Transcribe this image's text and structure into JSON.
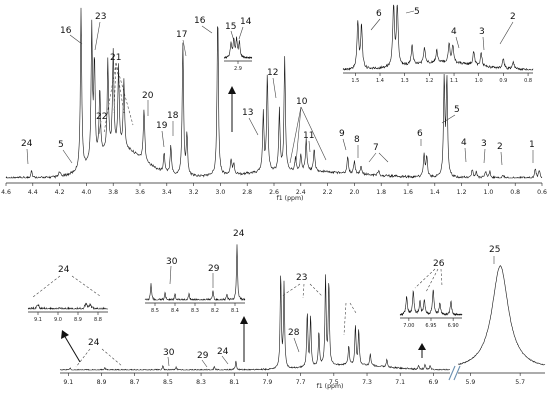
{
  "chart_data": [
    {
      "id": "panel-top",
      "type": "line",
      "xlabel": "f1 (ppm)",
      "xlim": [
        4.6,
        0.6
      ],
      "x_ticks": [
        4.6,
        4.4,
        4.2,
        4.0,
        3.8,
        3.6,
        3.4,
        3.2,
        3.0,
        2.8,
        2.6,
        2.4,
        2.2,
        2.0,
        1.8,
        1.6,
        1.4,
        1.2,
        1.0,
        0.8,
        0.6
      ],
      "x_tick_labels": [
        "4.6",
        "4.4",
        "4.2",
        "4.0",
        "3.8",
        "3.6",
        "3.4",
        "3.2",
        "3.0",
        "2.8",
        "2.6",
        "2.4",
        "2.2",
        "2.0",
        "1.8",
        "1.6",
        "1.4",
        "1.2",
        "1.0",
        "0.8",
        "0.6"
      ],
      "peaks": [
        {
          "ppm": 4.41,
          "h": 0.05,
          "label": "24"
        },
        {
          "ppm": 4.2,
          "h": 0.03,
          "label": "5"
        },
        {
          "ppm": 4.04,
          "h": 1.0,
          "label": "16"
        },
        {
          "ppm": 3.96,
          "h": 0.82,
          "label": "23"
        },
        {
          "ppm": 3.94,
          "h": 0.6,
          "label": "22"
        },
        {
          "ppm": 3.9,
          "h": 0.42,
          "label": ""
        },
        {
          "ppm": 3.84,
          "h": 0.56,
          "label": "21"
        },
        {
          "ppm": 3.8,
          "h": 0.6,
          "label": ""
        },
        {
          "ppm": 3.76,
          "h": 0.5,
          "label": ""
        },
        {
          "ppm": 3.72,
          "h": 0.42,
          "label": ""
        },
        {
          "ppm": 3.57,
          "h": 0.32,
          "label": "20"
        },
        {
          "ppm": 3.42,
          "h": 0.12,
          "label": "19"
        },
        {
          "ppm": 3.37,
          "h": 0.18,
          "label": "18"
        },
        {
          "ppm": 3.28,
          "h": 0.82,
          "label": "17"
        },
        {
          "ppm": 3.25,
          "h": 0.25,
          "label": ""
        },
        {
          "ppm": 3.02,
          "h": 1.0,
          "label": "16"
        },
        {
          "ppm": 2.92,
          "h": 0.09,
          "label": "15"
        },
        {
          "ppm": 2.9,
          "h": 0.07,
          "label": "14"
        },
        {
          "ppm": 2.68,
          "h": 0.36,
          "label": "13"
        },
        {
          "ppm": 2.65,
          "h": 0.6,
          "label": ""
        },
        {
          "ppm": 2.56,
          "h": 0.38,
          "label": "12"
        },
        {
          "ppm": 2.52,
          "h": 0.7,
          "label": ""
        },
        {
          "ppm": 2.44,
          "h": 0.08,
          "label": "10"
        },
        {
          "ppm": 2.4,
          "h": 0.1,
          "label": ""
        },
        {
          "ppm": 2.36,
          "h": 0.2,
          "label": "11"
        },
        {
          "ppm": 2.3,
          "h": 0.15,
          "label": ""
        },
        {
          "ppm": 2.05,
          "h": 0.1,
          "label": "9"
        },
        {
          "ppm": 2.0,
          "h": 0.08,
          "label": ""
        },
        {
          "ppm": 1.95,
          "h": 0.05,
          "label": "8"
        },
        {
          "ppm": 1.82,
          "h": 0.03,
          "label": "7"
        },
        {
          "ppm": 1.48,
          "h": 0.14,
          "label": "6"
        },
        {
          "ppm": 1.46,
          "h": 0.13,
          "label": ""
        },
        {
          "ppm": 1.33,
          "h": 0.6,
          "label": "5"
        },
        {
          "ppm": 1.31,
          "h": 0.6,
          "label": ""
        },
        {
          "ppm": 1.12,
          "h": 0.05,
          "label": "4"
        },
        {
          "ppm": 1.09,
          "h": 0.04,
          "label": ""
        },
        {
          "ppm": 1.02,
          "h": 0.04,
          "label": "3"
        },
        {
          "ppm": 0.99,
          "h": 0.04,
          "label": ""
        },
        {
          "ppm": 0.89,
          "h": 0.02,
          "label": "2"
        },
        {
          "ppm": 0.65,
          "h": 0.06,
          "label": "1"
        },
        {
          "ppm": 0.62,
          "h": 0.05,
          "label": ""
        }
      ]
    },
    {
      "id": "inset-top-right",
      "type": "line",
      "xlim": [
        1.55,
        0.78
      ],
      "x_ticks": [
        1.5,
        1.4,
        1.3,
        1.2,
        1.1,
        1.0,
        0.9,
        0.8
      ],
      "x_tick_labels": [
        "1.5",
        "1.4",
        "1.3",
        "1.2",
        "1.1",
        "1.0",
        "0.9",
        "0.8"
      ],
      "labels": [
        "6",
        "5",
        "4",
        "3",
        "2"
      ]
    },
    {
      "id": "inset-top-mid",
      "type": "line",
      "xlim": [
        2.95,
        2.85
      ],
      "x_ticks": [
        2.9
      ],
      "x_tick_labels": [
        "2.9"
      ],
      "labels": [
        "15",
        "14"
      ]
    },
    {
      "id": "panel-bottom",
      "type": "line",
      "xlabel": "f1 (ppm)",
      "xlim": [
        9.15,
        6.8
      ],
      "x_ticks": [
        9.1,
        8.9,
        8.7,
        8.5,
        8.3,
        8.1,
        7.9,
        7.7,
        7.5,
        7.3,
        7.1,
        6.9
      ],
      "x_tick_labels": [
        "9.1",
        "8.9",
        "8.7",
        "8.5",
        "8.3",
        "8.1",
        "7.9",
        "7.7",
        "7.5",
        "7.3",
        "7.1",
        "6.9"
      ],
      "peaks": [
        {
          "ppm": 9.09,
          "h": 0.02,
          "label": "24"
        },
        {
          "ppm": 8.88,
          "h": 0.02,
          "label": ""
        },
        {
          "ppm": 8.53,
          "h": 0.04,
          "label": "30"
        },
        {
          "ppm": 8.45,
          "h": 0.03,
          "label": ""
        },
        {
          "ppm": 8.22,
          "h": 0.03,
          "label": "29"
        },
        {
          "ppm": 8.09,
          "h": 0.09,
          "label": "24"
        },
        {
          "ppm": 7.82,
          "h": 0.95,
          "label": "23"
        },
        {
          "ppm": 7.8,
          "h": 0.85,
          "label": ""
        },
        {
          "ppm": 7.66,
          "h": 0.55,
          "label": "28"
        },
        {
          "ppm": 7.64,
          "h": 0.5,
          "label": ""
        },
        {
          "ppm": 7.59,
          "h": 0.35,
          "label": ""
        },
        {
          "ppm": 7.55,
          "h": 0.9,
          "label": ""
        },
        {
          "ppm": 7.53,
          "h": 0.85,
          "label": ""
        },
        {
          "ppm": 7.41,
          "h": 0.2,
          "label": "27"
        },
        {
          "ppm": 7.37,
          "h": 0.4,
          "label": ""
        },
        {
          "ppm": 7.35,
          "h": 0.35,
          "label": ""
        },
        {
          "ppm": 7.28,
          "h": 0.12,
          "label": ""
        },
        {
          "ppm": 7.18,
          "h": 0.08,
          "label": ""
        },
        {
          "ppm": 6.99,
          "h": 0.04,
          "label": "26"
        },
        {
          "ppm": 6.95,
          "h": 0.05,
          "label": ""
        },
        {
          "ppm": 6.92,
          "h": 0.04,
          "label": ""
        }
      ]
    },
    {
      "id": "panel-bottom-right",
      "type": "line",
      "xlim": [
        5.95,
        5.6
      ],
      "x_ticks": [
        5.9,
        5.7
      ],
      "x_tick_labels": [
        "5.9",
        "5.7"
      ],
      "peaks": [
        {
          "ppm": 5.78,
          "h": 1.0,
          "label": "25"
        }
      ]
    },
    {
      "id": "inset-bottom-left",
      "type": "line",
      "xlim": [
        9.15,
        8.75
      ],
      "x_ticks": [
        9.1,
        9.0,
        8.9,
        8.8
      ],
      "x_tick_labels": [
        "9.1",
        "9.0",
        "8.9",
        "8.8"
      ],
      "labels": [
        "24"
      ]
    },
    {
      "id": "inset-bottom-mid",
      "type": "line",
      "xlim": [
        8.55,
        8.05
      ],
      "x_ticks": [
        8.5,
        8.4,
        8.3,
        8.2,
        8.1
      ],
      "x_tick_labels": [
        "8.5",
        "8.4",
        "8.3",
        "8.2",
        "8.1"
      ],
      "labels": [
        "30",
        "29",
        "24"
      ]
    },
    {
      "id": "inset-bottom-right",
      "type": "line",
      "xlim": [
        7.02,
        6.88
      ],
      "x_ticks": [
        7.0,
        6.95,
        6.9
      ],
      "x_tick_labels": [
        "7.00",
        "6.95",
        "6.90"
      ],
      "labels": [
        "26"
      ]
    }
  ]
}
